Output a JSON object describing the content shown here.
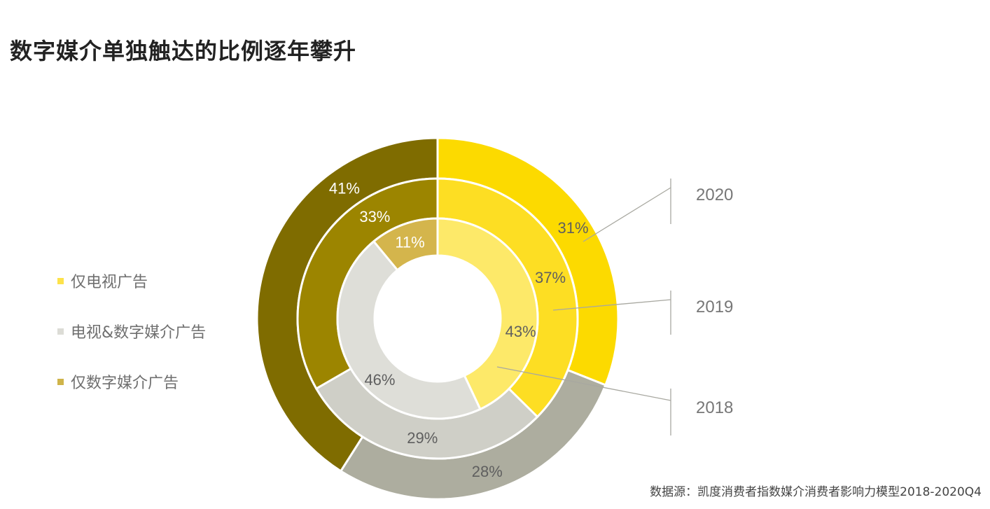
{
  "title": "数字媒介单独触达的比例逐年攀升",
  "source": "数据源：凯度消费者指数媒介消费者影响力模型2018-2020Q4",
  "legend": [
    {
      "label": "仅电视广告",
      "color": "#FDE24A"
    },
    {
      "label": "电视&数字媒介广告",
      "color": "#DCDCD6"
    },
    {
      "label": "仅数字媒介广告",
      "color": "#CFB44A"
    }
  ],
  "chart_data": {
    "type": "donut",
    "categories": [
      "仅电视广告",
      "电视&数字媒介广告",
      "仅数字媒介广告"
    ],
    "series": [
      {
        "name": "2020",
        "ring": "outer",
        "values": [
          31,
          28,
          41
        ],
        "labels": [
          "31%",
          "28%",
          "41%"
        ],
        "colors": [
          "#FCDA00",
          "#ADAD9F",
          "#7F6C00"
        ]
      },
      {
        "name": "2019",
        "ring": "middle",
        "values": [
          37,
          29,
          33
        ],
        "labels": [
          "37%",
          "29%",
          "33%"
        ],
        "colors": [
          "#FDDE23",
          "#CFCFC7",
          "#9C8500"
        ]
      },
      {
        "name": "2018",
        "ring": "inner",
        "values": [
          43,
          46,
          11
        ],
        "labels": [
          "43%",
          "46%",
          "11%"
        ],
        "colors": [
          "#FDE969",
          "#DEDED8",
          "#D4B54C"
        ]
      }
    ],
    "label_colors": [
      "#5f5f5f",
      "#5f5f5f",
      "#ffffff"
    ]
  }
}
